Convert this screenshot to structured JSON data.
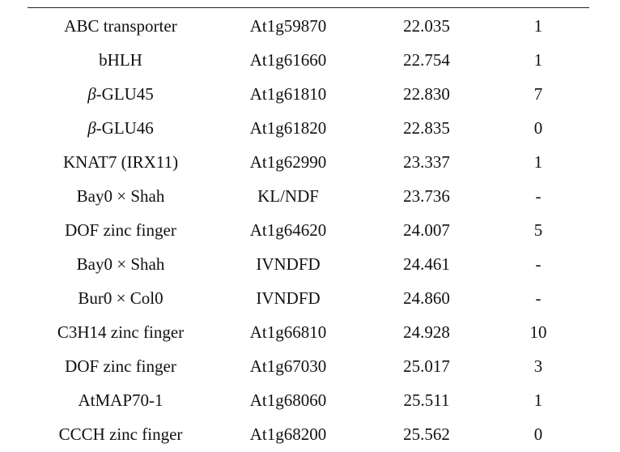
{
  "table": {
    "rows": [
      {
        "gene_prefix": "",
        "gene": "ABC transporter",
        "id": "At1g59870",
        "position": "22.035",
        "count": "1"
      },
      {
        "gene_prefix": "",
        "gene": "bHLH",
        "id": "At1g61660",
        "position": "22.754",
        "count": "1"
      },
      {
        "gene_prefix": "β",
        "gene": "-GLU45",
        "id": "At1g61810",
        "position": "22.830",
        "count": "7"
      },
      {
        "gene_prefix": "β",
        "gene": "-GLU46",
        "id": "At1g61820",
        "position": "22.835",
        "count": "0"
      },
      {
        "gene_prefix": "",
        "gene": "KNAT7 (IRX11)",
        "id": "At1g62990",
        "position": "23.337",
        "count": "1"
      },
      {
        "gene_prefix": "",
        "gene": "Bay0 × Shah",
        "id": "KL/NDF",
        "position": "23.736",
        "count": "-"
      },
      {
        "gene_prefix": "",
        "gene": "DOF zinc finger",
        "id": "At1g64620",
        "position": "24.007",
        "count": "5"
      },
      {
        "gene_prefix": "",
        "gene": "Bay0 × Shah",
        "id": "IVNDFD",
        "position": "24.461",
        "count": "-"
      },
      {
        "gene_prefix": "",
        "gene": "Bur0 × Col0",
        "id": "IVNDFD",
        "position": "24.860",
        "count": "-"
      },
      {
        "gene_prefix": "",
        "gene": "C3H14 zinc finger",
        "id": "At1g66810",
        "position": "24.928",
        "count": "10"
      },
      {
        "gene_prefix": "",
        "gene": "DOF zinc finger",
        "id": "At1g67030",
        "position": "25.017",
        "count": "3"
      },
      {
        "gene_prefix": "",
        "gene": "AtMAP70-1",
        "id": "At1g68060",
        "position": "25.511",
        "count": "1"
      },
      {
        "gene_prefix": "",
        "gene": "CCCH zinc finger",
        "id": "At1g68200",
        "position": "25.562",
        "count": "0"
      }
    ]
  }
}
